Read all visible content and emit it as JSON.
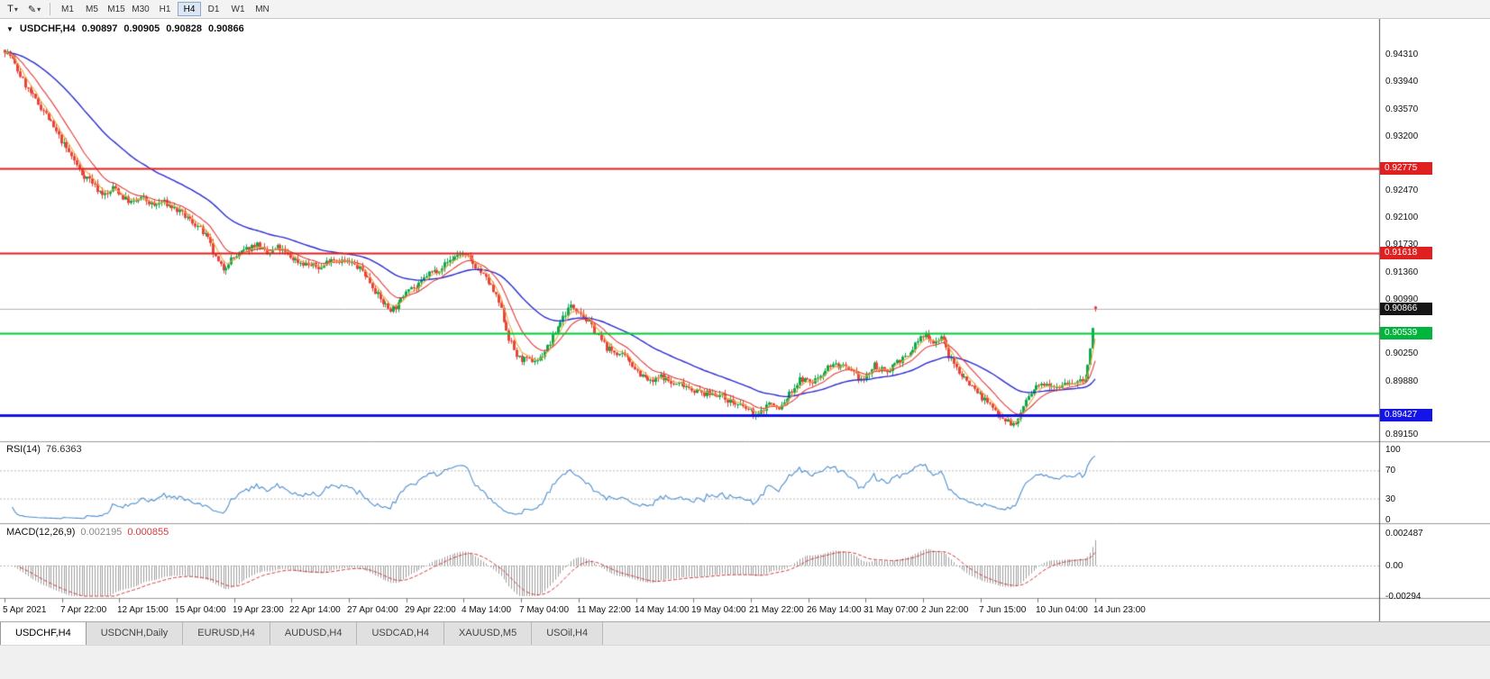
{
  "toolbar": {
    "text_tool_label": "T",
    "timeframes": [
      "M1",
      "M5",
      "M15",
      "M30",
      "H1",
      "H4",
      "D1",
      "W1",
      "MN"
    ],
    "active_timeframe": "H4"
  },
  "icons": {
    "caret_down": "▾",
    "pencil": "✎",
    "chart_marker": "▼"
  },
  "chart": {
    "title": "USDCHF,H4",
    "ohlc": {
      "open": "0.90897",
      "high": "0.90905",
      "low": "0.90828",
      "close": "0.90866"
    },
    "price_ticks": [
      {
        "label": "0.94310",
        "value": 0.9431
      },
      {
        "label": "0.93940",
        "value": 0.9394
      },
      {
        "label": "0.93570",
        "value": 0.9357
      },
      {
        "label": "0.93200",
        "value": 0.932
      },
      {
        "label": "0.92470",
        "value": 0.9247
      },
      {
        "label": "0.92100",
        "value": 0.921
      },
      {
        "label": "0.91730",
        "value": 0.9173
      },
      {
        "label": "0.91360",
        "value": 0.9136
      },
      {
        "label": "0.90990",
        "value": 0.9099
      },
      {
        "label": "0.90250",
        "value": 0.9025
      },
      {
        "label": "0.89880",
        "value": 0.8988
      },
      {
        "label": "0.89150",
        "value": 0.8915
      }
    ],
    "price_boxes": [
      {
        "label": "0.92775",
        "value": 0.92775,
        "bg": "#e02020"
      },
      {
        "label": "0.91618",
        "value": 0.91618,
        "bg": "#e02020"
      },
      {
        "label": "0.90866",
        "value": 0.90866,
        "bg": "#151515"
      },
      {
        "label": "0.90539",
        "value": 0.90539,
        "bg": "#00b43c"
      },
      {
        "label": "0.89427",
        "value": 0.89427,
        "bg": "#1414e6"
      }
    ]
  },
  "rsi": {
    "name": "RSI(14)",
    "value": "76.6363",
    "color": "#4f8fce",
    "levels": [
      70,
      30
    ],
    "axis": [
      {
        "label": "100",
        "value": 100
      },
      {
        "label": "70",
        "value": 70
      },
      {
        "label": "30",
        "value": 30
      },
      {
        "label": "0",
        "value": 0
      }
    ]
  },
  "macd": {
    "name": "MACD(12,26,9)",
    "main_value": "0.002195",
    "signal_value": "0.000855",
    "hist_color": "#a0a0a0",
    "signal_color": "#d43a3a",
    "axis": [
      {
        "label": "0.002487",
        "value": 0.002487
      },
      {
        "label": "0.00",
        "value": 0
      },
      {
        "label": "-0.00294",
        "value": -0.00294
      }
    ]
  },
  "tabs": [
    "USDCHF,H4",
    "USDCNH,Daily",
    "EURUSD,H4",
    "AUDUSD,H4",
    "USDCAD,H4",
    "XAUUSD,M5",
    "USOil,H4"
  ],
  "active_tab": "USDCHF,H4",
  "chart_data": {
    "type": "candlestick",
    "symbol": "USDCHF",
    "timeframe": "H4",
    "title": "USDCHF,H4",
    "y_range": {
      "min": 0.8907,
      "max": 0.9475
    },
    "x_labels": [
      "5 Apr 2021",
      "7 Apr 22:00",
      "12 Apr 15:00",
      "15 Apr 04:00",
      "19 Apr 23:00",
      "22 Apr 14:00",
      "27 Apr 04:00",
      "29 Apr 22:00",
      "4 May 14:00",
      "7 May 04:00",
      "11 May 22:00",
      "14 May 14:00",
      "19 May 04:00",
      "21 May 22:00",
      "26 May 14:00",
      "31 May 07:00",
      "2 Jun 22:00",
      "7 Jun 15:00",
      "10 Jun 04:00",
      "14 Jun 23:00"
    ],
    "levels": [
      {
        "value": 0.92775,
        "color": "#e02020",
        "width": 2,
        "kind": "resistance"
      },
      {
        "value": 0.91618,
        "color": "#e02020",
        "width": 2,
        "kind": "resistance"
      },
      {
        "value": 0.90539,
        "color": "#00cc33",
        "width": 2,
        "kind": "level"
      },
      {
        "value": 0.89427,
        "color": "#1414e6",
        "width": 3,
        "kind": "support"
      }
    ],
    "bid_line": {
      "value": 0.90866,
      "color": "#b4b4b4"
    },
    "last_candle": {
      "open": 0.90897,
      "high": 0.90905,
      "low": 0.90828,
      "close": 0.90866
    },
    "num_candles": 425,
    "candle_colors": {
      "up": "#0fa84e",
      "down": "#e8443a"
    },
    "moving_averages": [
      {
        "period": 5,
        "color": "#efa83f"
      },
      {
        "period": 13,
        "color": "#e23b3b"
      },
      {
        "period": 45,
        "color": "#2b2bd0"
      }
    ],
    "indicators": [
      {
        "name": "RSI",
        "period": 14,
        "current": 76.6363
      },
      {
        "name": "MACD",
        "fast": 12,
        "slow": 26,
        "signal": 9,
        "current_main": 0.002195,
        "current_signal": 0.000855
      }
    ],
    "price_path": [
      [
        5,
        0.9438
      ],
      [
        12,
        0.9428
      ],
      [
        20,
        0.9408
      ],
      [
        30,
        0.9385
      ],
      [
        40,
        0.9368
      ],
      [
        50,
        0.9352
      ],
      [
        60,
        0.933
      ],
      [
        70,
        0.931
      ],
      [
        80,
        0.9292
      ],
      [
        90,
        0.927
      ],
      [
        100,
        0.9262
      ],
      [
        108,
        0.9248
      ],
      [
        118,
        0.924
      ],
      [
        126,
        0.9252
      ],
      [
        136,
        0.9238
      ],
      [
        146,
        0.923
      ],
      [
        158,
        0.9237
      ],
      [
        170,
        0.9226
      ],
      [
        180,
        0.9232
      ],
      [
        192,
        0.9224
      ],
      [
        205,
        0.9212
      ],
      [
        218,
        0.92
      ],
      [
        230,
        0.9182
      ],
      [
        240,
        0.9152
      ],
      [
        247,
        0.914
      ],
      [
        254,
        0.9152
      ],
      [
        264,
        0.916
      ],
      [
        274,
        0.9168
      ],
      [
        284,
        0.9175
      ],
      [
        296,
        0.916
      ],
      [
        308,
        0.917
      ],
      [
        320,
        0.9158
      ],
      [
        332,
        0.915
      ],
      [
        344,
        0.9146
      ],
      [
        356,
        0.9142
      ],
      [
        366,
        0.9156
      ],
      [
        378,
        0.9152
      ],
      [
        390,
        0.9148
      ],
      [
        402,
        0.9138
      ],
      [
        412,
        0.912
      ],
      [
        422,
        0.9098
      ],
      [
        432,
        0.9086
      ],
      [
        442,
        0.9092
      ],
      [
        452,
        0.9118
      ],
      [
        462,
        0.9114
      ],
      [
        474,
        0.9134
      ],
      [
        486,
        0.914
      ],
      [
        498,
        0.9152
      ],
      [
        510,
        0.9162
      ],
      [
        520,
        0.9154
      ],
      [
        532,
        0.9138
      ],
      [
        544,
        0.9118
      ],
      [
        554,
        0.9092
      ],
      [
        564,
        0.9048
      ],
      [
        574,
        0.902
      ],
      [
        586,
        0.9016
      ],
      [
        598,
        0.9018
      ],
      [
        610,
        0.904
      ],
      [
        622,
        0.9072
      ],
      [
        632,
        0.909
      ],
      [
        642,
        0.9086
      ],
      [
        652,
        0.9068
      ],
      [
        662,
        0.9052
      ],
      [
        674,
        0.9032
      ],
      [
        686,
        0.9026
      ],
      [
        698,
        0.9016
      ],
      [
        710,
        0.8998
      ],
      [
        722,
        0.8986
      ],
      [
        734,
        0.8996
      ],
      [
        746,
        0.8984
      ],
      [
        758,
        0.8985
      ],
      [
        770,
        0.8976
      ],
      [
        782,
        0.8971
      ],
      [
        794,
        0.8972
      ],
      [
        806,
        0.8964
      ],
      [
        818,
        0.8956
      ],
      [
        830,
        0.895
      ],
      [
        840,
        0.894
      ],
      [
        852,
        0.896
      ],
      [
        864,
        0.895
      ],
      [
        876,
        0.8972
      ],
      [
        888,
        0.8992
      ],
      [
        900,
        0.8986
      ],
      [
        912,
        0.9
      ],
      [
        922,
        0.9012
      ],
      [
        934,
        0.9008
      ],
      [
        946,
        0.8998
      ],
      [
        958,
        0.899
      ],
      [
        970,
        0.901
      ],
      [
        982,
        0.9
      ],
      [
        994,
        0.9016
      ],
      [
        1006,
        0.902
      ],
      [
        1018,
        0.9044
      ],
      [
        1028,
        0.9052
      ],
      [
        1036,
        0.904
      ],
      [
        1044,
        0.905
      ],
      [
        1054,
        0.9018
      ],
      [
        1066,
        0.8998
      ],
      [
        1078,
        0.8982
      ],
      [
        1090,
        0.8966
      ],
      [
        1102,
        0.895
      ],
      [
        1114,
        0.8938
      ],
      [
        1126,
        0.8927
      ],
      [
        1136,
        0.8958
      ],
      [
        1148,
        0.8978
      ],
      [
        1160,
        0.8988
      ],
      [
        1172,
        0.8982
      ],
      [
        1184,
        0.8988
      ],
      [
        1196,
        0.8986
      ],
      [
        1204,
        0.8992
      ],
      [
        1209,
        0.903
      ],
      [
        1215,
        0.9088
      ]
    ]
  }
}
